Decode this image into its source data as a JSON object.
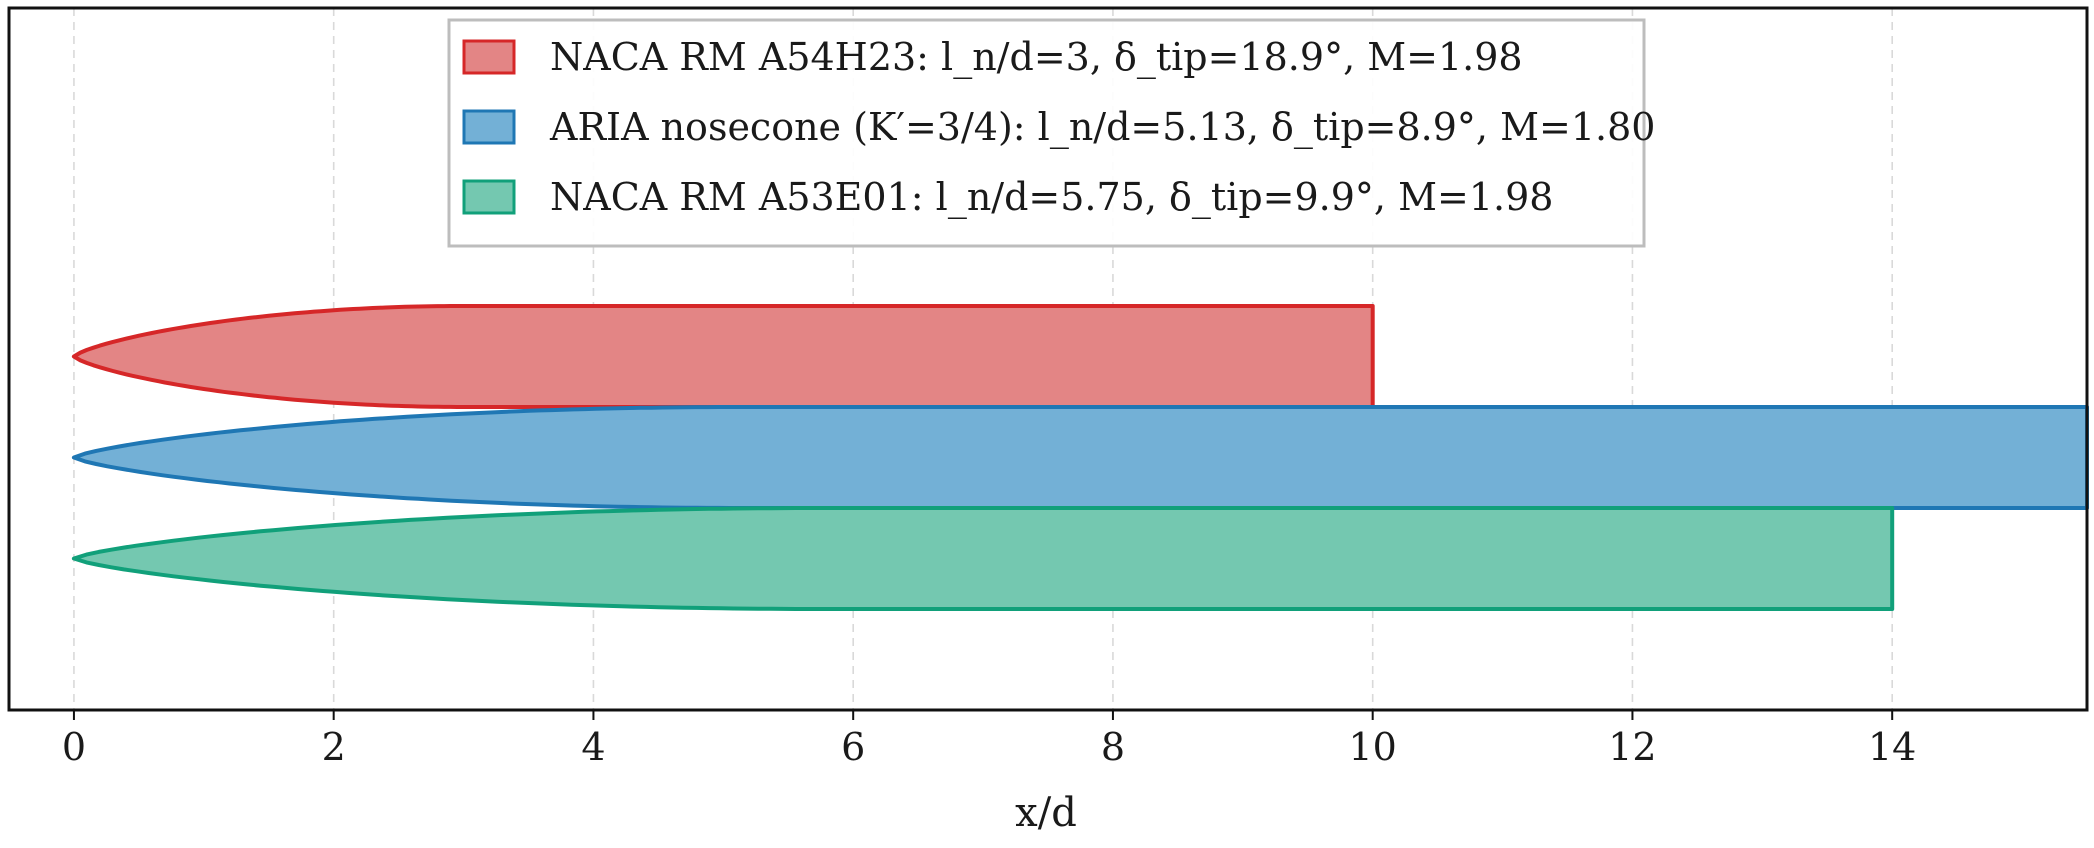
{
  "chart_data": {
    "type": "area",
    "xlabel": "x/d",
    "xlim": [
      -0.5,
      15.5
    ],
    "x_ticks": [
      "0",
      "2",
      "4",
      "6",
      "8",
      "10",
      "12",
      "14"
    ],
    "x_tick_values": [
      0,
      2,
      4,
      6,
      8,
      10,
      12,
      14
    ],
    "grid": "vertical-dashed",
    "legend_placement": "top-center",
    "series": [
      {
        "name": "NACA RM A54H23:  l_n/d=3,  δ_tip=18.9°,  M=1.98",
        "nose_length": 3,
        "total_length": 10,
        "diameter": 1,
        "center_y": 2,
        "color": "#d62728",
        "fill": "#e38585"
      },
      {
        "name": "ARIA nosecone (K′=3/4):  l_n/d=5.13,  δ_tip=8.9°,  M=1.80",
        "nose_length": 5.13,
        "total_length": 15.5,
        "diameter": 1,
        "center_y": 1,
        "color": "#1f77b4",
        "fill": "#73b0d6"
      },
      {
        "name": "NACA RM A53E01:  l_n/d=5.75,  δ_tip=9.9°,  M=1.98",
        "nose_length": 5.75,
        "total_length": 14,
        "diameter": 1,
        "center_y": 0,
        "color": "#11a07a",
        "fill": "#74c8b0"
      }
    ]
  },
  "legend": [
    {
      "label": "NACA RM A54H23:  l_n/d=3,  δ_tip=18.9°,  M=1.98"
    },
    {
      "label": "ARIA nosecone (K′=3/4):  l_n/d=5.13,  δ_tip=8.9°,  M=1.80"
    },
    {
      "label": "NACA RM A53E01:  l_n/d=5.75,  δ_tip=9.9°,  M=1.98"
    }
  ]
}
